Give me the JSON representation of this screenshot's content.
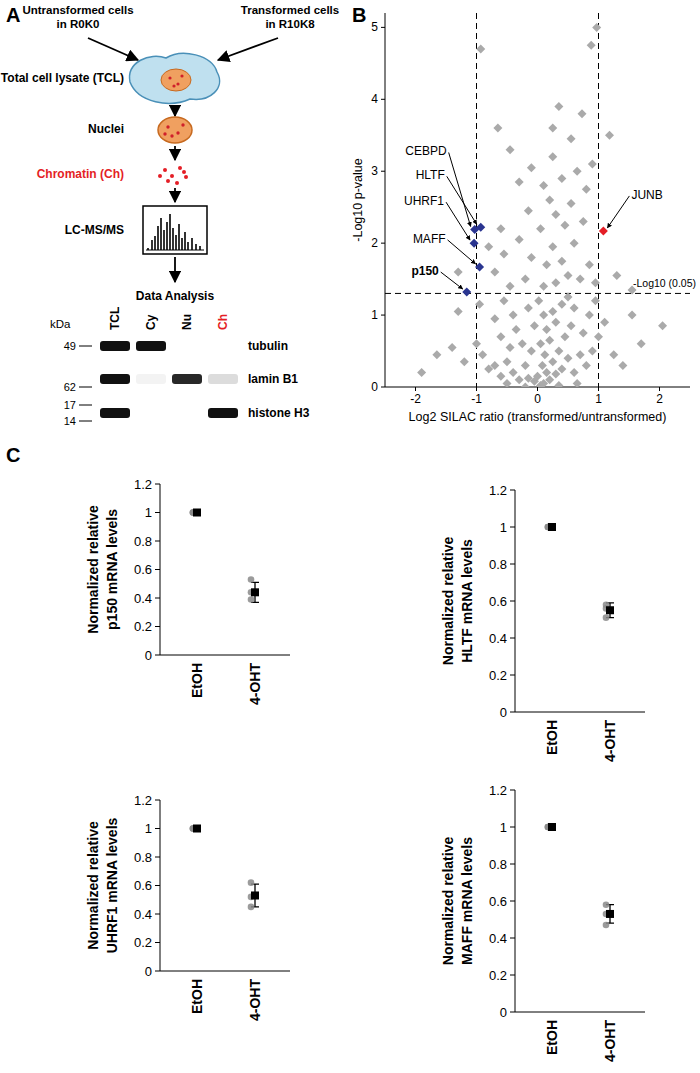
{
  "panels": [
    "A",
    "B",
    "C"
  ],
  "diagram": {
    "inputs": [
      "Untransformed cells in R0K0",
      "Transformed cells in R10K8"
    ],
    "steps": [
      {
        "label": "Total cell lysate (TCL)",
        "color": "#000000"
      },
      {
        "label": "Nuclei",
        "color": "#000000"
      },
      {
        "label": "Chromatin (Ch)",
        "color": "#e41e26"
      },
      {
        "label": "LC-MS/MS",
        "color": "#000000"
      },
      {
        "label": "Data Analysis",
        "color": "#000000"
      }
    ],
    "blot": {
      "unit": "kDa",
      "lanes": [
        {
          "label": "TCL",
          "color": "#000000"
        },
        {
          "label": "Cy",
          "color": "#000000"
        },
        {
          "label": "Nu",
          "color": "#000000"
        },
        {
          "label": "Ch",
          "color": "#e41e26"
        }
      ],
      "rows": [
        {
          "label": "tubulin",
          "markers": [
            49
          ],
          "intensity": [
            1,
            1,
            0,
            0
          ]
        },
        {
          "label": "lamin B1",
          "markers": [
            62
          ],
          "intensity": [
            1,
            0.05,
            0.9,
            0.15
          ]
        },
        {
          "label": "histone H3",
          "markers": [
            17,
            14
          ],
          "intensity": [
            1,
            0,
            0,
            1
          ]
        }
      ]
    }
  },
  "chart_data": [
    {
      "type": "scatter",
      "x_label": "Log2 SILAC ratio (transformed/untransformed)",
      "y_label": "-Log10 p-value",
      "xlim": [
        -2.5,
        2.5
      ],
      "ylim": [
        0,
        5.2
      ],
      "xticks": [
        -2,
        -1,
        0,
        1,
        2
      ],
      "yticks": [
        0,
        1,
        2,
        3,
        4,
        5
      ],
      "marker": "diamond",
      "grid": false,
      "reference_lines": {
        "x": [
          -1,
          1
        ],
        "y": [
          {
            "value": 1.301,
            "label": "-Log10 (0.05)"
          }
        ]
      },
      "series": [
        {
          "color": "#aaaaaa",
          "x": [
            0.05,
            0.1,
            -0.05,
            0.2,
            0,
            0.15,
            -0.15,
            0.3,
            -0.3,
            0.08,
            0.25,
            -0.2,
            0.4,
            -0.4,
            0.12,
            -0.1,
            0.35,
            0.5,
            -0.5,
            0.6,
            -0.6,
            0.05,
            0.2,
            -0.25,
            0.45,
            -0.45,
            0.7,
            -0.7,
            0.8,
            -0.8,
            0.15,
            -0.05,
            0.3,
            -0.35,
            0.55,
            -0.6,
            0.75,
            0.9,
            -0.9,
            0.1,
            0.25,
            -0.15,
            0.4,
            -0.4,
            0.6,
            -0.7,
            0.85,
            1.0,
            -1.0,
            0.02,
            0.5,
            -0.55,
            1.1,
            1.25,
            -1.2,
            1.4,
            -1.4,
            -1.65,
            1.7,
            2.05,
            1.55,
            -1.3,
            -1.9,
            0.95,
            -0.95,
            -0.2,
            0.35,
            0.65,
            -0.5,
            0.1,
            0.3,
            -0.2,
            0.5,
            -0.45,
            0.7,
            -0.7,
            0.15,
            0.4,
            -0.1,
            0.85,
            -0.55,
            0.25,
            0.6,
            -0.3,
            0.05,
            0.45,
            -0.6,
            0.75,
            0.3,
            -0.15,
            0.95,
            1.3,
            -1.3,
            1.55,
            0.55,
            -0.8,
            0.2,
            0.1,
            0.4,
            -0.3,
            0.65,
            0.25,
            -0.45,
            0.9,
            0.55,
            0.25,
            1.18,
            0.73,
            0.35,
            -0.93,
            0.88,
            0.97,
            -0.65,
            0.8,
            -0.1
          ],
          "values": [
            0.02,
            0.05,
            0.08,
            0.1,
            0.15,
            0.2,
            0.12,
            0.18,
            0.1,
            0.3,
            0.35,
            0.3,
            0.25,
            0.2,
            0.45,
            0.5,
            0.5,
            0.4,
            0.35,
            0.2,
            0.15,
            0.6,
            0.65,
            0.6,
            0.7,
            0.55,
            0.45,
            0.3,
            0.3,
            0.25,
            0.8,
            0.85,
            0.9,
            0.8,
            0.85,
            0.7,
            0.75,
            0.5,
            0.45,
            1.0,
            1.05,
            1.1,
            1.15,
            1.0,
            1.1,
            0.95,
            1.0,
            0.7,
            0.6,
            1.2,
            1.25,
            1.2,
            0.9,
            0.45,
            0.35,
            0.3,
            0.55,
            0.45,
            0.6,
            0.85,
            1.0,
            1.05,
            0.2,
            1.2,
            1.15,
            0,
            0.02,
            0.05,
            0.05,
            1.4,
            1.45,
            1.5,
            1.55,
            1.4,
            1.5,
            1.6,
            1.7,
            1.75,
            1.8,
            1.7,
            1.85,
            1.95,
            2.0,
            2.05,
            2.2,
            2.25,
            2.2,
            2.3,
            2.4,
            2.45,
            1.45,
            1.55,
            1.6,
            1.35,
            2.55,
            1.95,
            2.6,
            2.8,
            2.9,
            2.85,
            3.0,
            3.2,
            3.3,
            3.1,
            3.45,
            3.6,
            3.5,
            3.8,
            3.9,
            4.7,
            4.75,
            5.0,
            3.6,
            2.75,
            3.05
          ]
        },
        {
          "color": "#2a3590",
          "x": [
            -1.03,
            -0.93,
            -1.04,
            -0.95,
            -1.16
          ],
          "values": [
            2.19,
            2.22,
            2.0,
            1.67,
            1.32
          ],
          "labels": [
            "CEBPD",
            "HLTF",
            "UHRF1",
            "MAFF",
            "p150"
          ]
        },
        {
          "color": "#e41e26",
          "x": [
            1.08
          ],
          "values": [
            2.17
          ],
          "labels": [
            "JUNB"
          ]
        }
      ]
    },
    {
      "type": "scatter",
      "y_label": "Normalized relative p150 mRNA levels",
      "categories": [
        "EtOH",
        "4-OHT"
      ],
      "values": [
        1,
        0.44
      ],
      "errors": [
        0,
        0.07
      ],
      "replicates": [
        [
          1,
          1,
          1
        ],
        [
          0.39,
          0.44,
          0.53
        ]
      ],
      "ylim": [
        0,
        1.2
      ],
      "yticks": [
        0,
        0.2,
        0.4,
        0.6,
        0.8,
        1,
        1.2
      ],
      "marker": "square",
      "color": "#000000"
    },
    {
      "type": "scatter",
      "y_label": "Normalized relative HLTF mRNA levels",
      "categories": [
        "EtOH",
        "4-OHT"
      ],
      "values": [
        1,
        0.55
      ],
      "errors": [
        0,
        0.04
      ],
      "replicates": [
        [
          1,
          1,
          1
        ],
        [
          0.51,
          0.56,
          0.58
        ]
      ],
      "ylim": [
        0,
        1.2
      ],
      "yticks": [
        0,
        0.2,
        0.4,
        0.6,
        0.8,
        1,
        1.2
      ],
      "marker": "square",
      "color": "#000000"
    },
    {
      "type": "scatter",
      "y_label": "Normalized relative UHRF1 mRNA levels",
      "categories": [
        "EtOH",
        "4-OHT"
      ],
      "values": [
        1,
        0.53
      ],
      "errors": [
        0,
        0.08
      ],
      "replicates": [
        [
          1,
          1,
          1
        ],
        [
          0.45,
          0.52,
          0.62
        ]
      ],
      "ylim": [
        0,
        1.2
      ],
      "yticks": [
        0,
        0.2,
        0.4,
        0.6,
        0.8,
        1,
        1.2
      ],
      "marker": "square",
      "color": "#000000"
    },
    {
      "type": "scatter",
      "y_label": "Normalized relative MAFF mRNA levels",
      "categories": [
        "EtOH",
        "4-OHT"
      ],
      "values": [
        1,
        0.53
      ],
      "errors": [
        0,
        0.05
      ],
      "replicates": [
        [
          1,
          1,
          1
        ],
        [
          0.47,
          0.53,
          0.58
        ]
      ],
      "ylim": [
        0,
        1.2
      ],
      "yticks": [
        0,
        0.2,
        0.4,
        0.6,
        0.8,
        1,
        1.2
      ],
      "marker": "square",
      "color": "#000000"
    }
  ]
}
